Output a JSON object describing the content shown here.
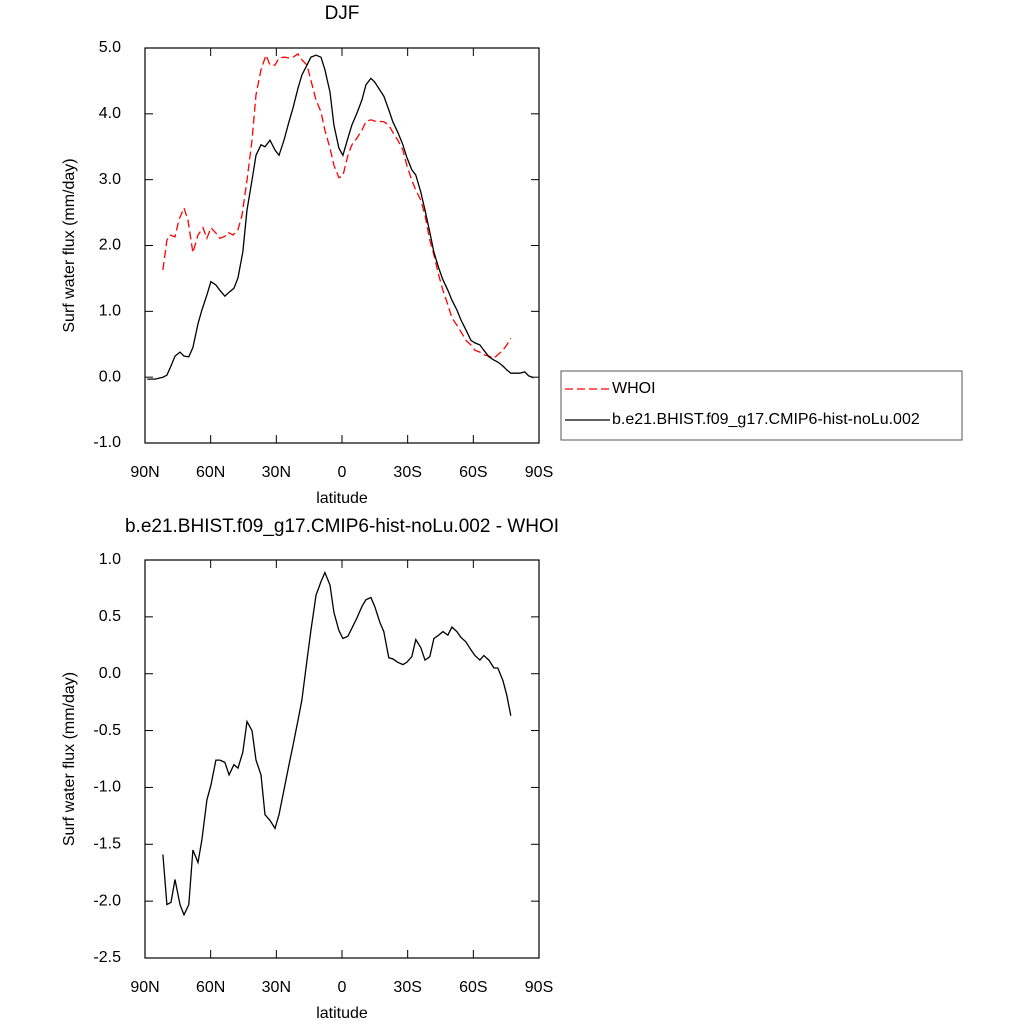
{
  "chart_data": [
    {
      "type": "line",
      "title": "DJF",
      "xlabel": "latitude",
      "ylabel": "Surf water flux (mm/day)",
      "xlim": [
        90,
        -90
      ],
      "ylim": [
        -1,
        5
      ],
      "xticks": [
        {
          "value": 90,
          "label": "90N"
        },
        {
          "value": 60,
          "label": "60N"
        },
        {
          "value": 30,
          "label": "30N"
        },
        0,
        {
          "value": -30,
          "label": "30S"
        },
        {
          "value": -60,
          "label": "60S"
        },
        {
          "value": -90,
          "label": "90S"
        }
      ],
      "yticks": [
        {
          "value": -1,
          "label": "-1.0"
        },
        {
          "value": 0,
          "label": "0.0"
        },
        {
          "value": 1,
          "label": "1.0"
        },
        {
          "value": 2,
          "label": "2.0"
        },
        {
          "value": 3,
          "label": "3.0"
        },
        {
          "value": 4,
          "label": "4.0"
        },
        {
          "value": 5,
          "label": "5.0"
        }
      ],
      "legend": "right",
      "series": [
        {
          "name": "WHOI",
          "color": "#ff0000",
          "line_style": "dashed",
          "x": [
            81.8,
            80.0,
            78.6,
            76.3,
            74.5,
            72.2,
            70.4,
            68.1,
            65.8,
            63.5,
            61.7,
            59.9,
            57.6,
            55.8,
            53.5,
            52.1,
            49.8,
            47.5,
            45.7,
            43.4,
            41.1,
            39.3,
            37.0,
            34.7,
            32.9,
            30.6,
            28.8,
            26.5,
            24.2,
            22.4,
            20.1,
            18.3,
            16.0,
            14.2,
            11.9,
            9.6,
            7.8,
            5.5,
            3.7,
            1.4,
            -0.4,
            -2.7,
            -4.5,
            -6.8,
            -9.1,
            -10.9,
            -13.2,
            -15.0,
            -19.1,
            -21.4,
            -23.2,
            -25.5,
            -27.8,
            -29.6,
            -31.9,
            -33.7,
            -36.0,
            -37.9,
            -40.1,
            -42.0,
            -44.2,
            -46.1,
            -48.4,
            -50.2,
            -52.5,
            -54.3,
            -56.6,
            -58.9,
            -60.7,
            -63.0,
            -64.8,
            -67.1,
            -69.4,
            -71.2,
            -73.5,
            -75.3,
            -77.1
          ],
          "values": [
            1.63,
            2.08,
            2.16,
            2.13,
            2.39,
            2.57,
            2.39,
            1.89,
            2.16,
            2.27,
            2.11,
            2.27,
            2.19,
            2.11,
            2.14,
            2.2,
            2.16,
            2.24,
            2.46,
            2.99,
            3.6,
            4.29,
            4.67,
            4.89,
            4.74,
            4.74,
            4.85,
            4.86,
            4.85,
            4.86,
            4.91,
            4.82,
            4.74,
            4.51,
            4.21,
            4.03,
            3.75,
            3.48,
            3.22,
            3.03,
            3.06,
            3.37,
            3.53,
            3.63,
            3.75,
            3.88,
            3.91,
            3.89,
            3.88,
            3.83,
            3.72,
            3.6,
            3.45,
            3.22,
            2.99,
            2.84,
            2.69,
            2.46,
            2.08,
            1.86,
            1.55,
            1.32,
            1.1,
            0.9,
            0.79,
            0.69,
            0.56,
            0.49,
            0.41,
            0.38,
            0.34,
            0.32,
            0.29,
            0.34,
            0.41,
            0.49,
            0.59
          ]
        },
        {
          "name": "b.e21.BHIST.f09_g17.CMIP6-hist-noLu.002",
          "color": "#000000",
          "line_style": "solid",
          "x": [
            89.0,
            85.4,
            81.8,
            80.0,
            78.1,
            76.3,
            74.0,
            72.2,
            70.0,
            68.1,
            65.8,
            64.0,
            61.7,
            59.9,
            57.6,
            55.8,
            53.5,
            51.6,
            49.4,
            47.5,
            45.3,
            43.4,
            41.1,
            39.3,
            37.0,
            35.2,
            32.9,
            30.6,
            28.8,
            26.5,
            24.2,
            22.4,
            20.1,
            18.3,
            16.0,
            14.2,
            11.9,
            9.6,
            7.8,
            5.5,
            3.7,
            1.4,
            -0.4,
            -2.7,
            -4.5,
            -6.8,
            -9.1,
            -10.9,
            -13.2,
            -15.0,
            -17.3,
            -19.1,
            -21.4,
            -23.2,
            -25.5,
            -27.8,
            -29.6,
            -31.9,
            -33.7,
            -36.0,
            -37.9,
            -40.1,
            -42.0,
            -44.2,
            -46.1,
            -48.4,
            -50.2,
            -52.5,
            -54.3,
            -56.6,
            -58.9,
            -60.7,
            -63.0,
            -64.8,
            -67.1,
            -69.4,
            -71.2,
            -73.5,
            -75.3,
            -77.1,
            -79.4,
            -81.2,
            -83.5,
            -85.3,
            -87.6
          ],
          "values": [
            -0.03,
            -0.03,
            0.0,
            0.03,
            0.17,
            0.32,
            0.38,
            0.32,
            0.31,
            0.45,
            0.81,
            1.02,
            1.25,
            1.45,
            1.4,
            1.32,
            1.23,
            1.29,
            1.35,
            1.51,
            1.9,
            2.54,
            2.99,
            3.37,
            3.53,
            3.5,
            3.6,
            3.45,
            3.37,
            3.6,
            3.88,
            4.09,
            4.39,
            4.59,
            4.74,
            4.86,
            4.89,
            4.86,
            4.67,
            4.33,
            3.83,
            3.48,
            3.37,
            3.63,
            3.83,
            4.01,
            4.21,
            4.44,
            4.54,
            4.48,
            4.36,
            4.27,
            4.06,
            3.88,
            3.72,
            3.53,
            3.34,
            3.15,
            3.07,
            2.81,
            2.54,
            2.2,
            1.9,
            1.66,
            1.48,
            1.32,
            1.17,
            1.02,
            0.87,
            0.72,
            0.56,
            0.52,
            0.49,
            0.41,
            0.31,
            0.26,
            0.23,
            0.17,
            0.11,
            0.06,
            0.06,
            0.06,
            0.08,
            0.02,
            -0.01
          ]
        }
      ]
    },
    {
      "type": "line",
      "title": "b.e21.BHIST.f09_g17.CMIP6-hist-noLu.002 - WHOI",
      "xlabel": "latitude",
      "ylabel": "Surf water flux (mm/day)",
      "xlim": [
        90,
        -90
      ],
      "ylim": [
        -2.5,
        1
      ],
      "xticks": [
        {
          "value": 90,
          "label": "90N"
        },
        {
          "value": 60,
          "label": "60N"
        },
        {
          "value": 30,
          "label": "30N"
        },
        0,
        {
          "value": -30,
          "label": "30S"
        },
        {
          "value": -60,
          "label": "60S"
        },
        {
          "value": -90,
          "label": "90S"
        }
      ],
      "yticks": [
        -2.5,
        {
          "value": -2,
          "label": "-2.0"
        },
        -1.5,
        {
          "value": -1,
          "label": "-1.0"
        },
        -0.5,
        {
          "value": 0,
          "label": "0.0"
        },
        0.5,
        {
          "value": 1,
          "label": "1.0"
        }
      ],
      "series": [
        {
          "color": "#000000",
          "line_style": "solid",
          "x": [
            81.8,
            80.0,
            78.1,
            76.3,
            74.0,
            72.2,
            70.0,
            68.1,
            65.8,
            64.0,
            61.7,
            59.9,
            57.6,
            55.8,
            53.5,
            51.6,
            49.4,
            47.5,
            45.3,
            43.4,
            41.1,
            39.3,
            37.0,
            35.2,
            32.9,
            30.6,
            28.8,
            26.5,
            24.2,
            22.4,
            20.1,
            18.3,
            16.0,
            14.2,
            11.9,
            9.6,
            7.8,
            5.5,
            3.7,
            1.4,
            -0.4,
            -2.7,
            -4.5,
            -6.8,
            -9.1,
            -10.9,
            -13.2,
            -15.0,
            -17.3,
            -19.1,
            -21.4,
            -23.2,
            -25.5,
            -27.8,
            -29.6,
            -31.9,
            -33.7,
            -36.0,
            -37.9,
            -40.1,
            -42.0,
            -44.2,
            -46.1,
            -48.4,
            -50.2,
            -52.5,
            -54.3,
            -56.6,
            -58.9,
            -60.7,
            -63.0,
            -64.8,
            -67.1,
            -69.4,
            -71.2,
            -73.5,
            -75.3,
            -77.1
          ],
          "values": [
            -1.59,
            -2.03,
            -2.01,
            -1.81,
            -2.03,
            -2.12,
            -2.03,
            -1.55,
            -1.66,
            -1.46,
            -1.11,
            -0.98,
            -0.76,
            -0.76,
            -0.78,
            -0.89,
            -0.8,
            -0.83,
            -0.69,
            -0.42,
            -0.5,
            -0.76,
            -0.89,
            -1.24,
            -1.29,
            -1.36,
            -1.24,
            -1.02,
            -0.8,
            -0.63,
            -0.41,
            -0.23,
            0.12,
            0.38,
            0.69,
            0.81,
            0.89,
            0.78,
            0.54,
            0.38,
            0.31,
            0.33,
            0.4,
            0.49,
            0.59,
            0.65,
            0.67,
            0.59,
            0.45,
            0.37,
            0.14,
            0.13,
            0.1,
            0.08,
            0.1,
            0.15,
            0.3,
            0.23,
            0.12,
            0.15,
            0.31,
            0.34,
            0.37,
            0.34,
            0.41,
            0.37,
            0.32,
            0.28,
            0.21,
            0.16,
            0.12,
            0.16,
            0.12,
            0.05,
            0.05,
            -0.06,
            -0.19,
            -0.37
          ]
        }
      ]
    }
  ]
}
